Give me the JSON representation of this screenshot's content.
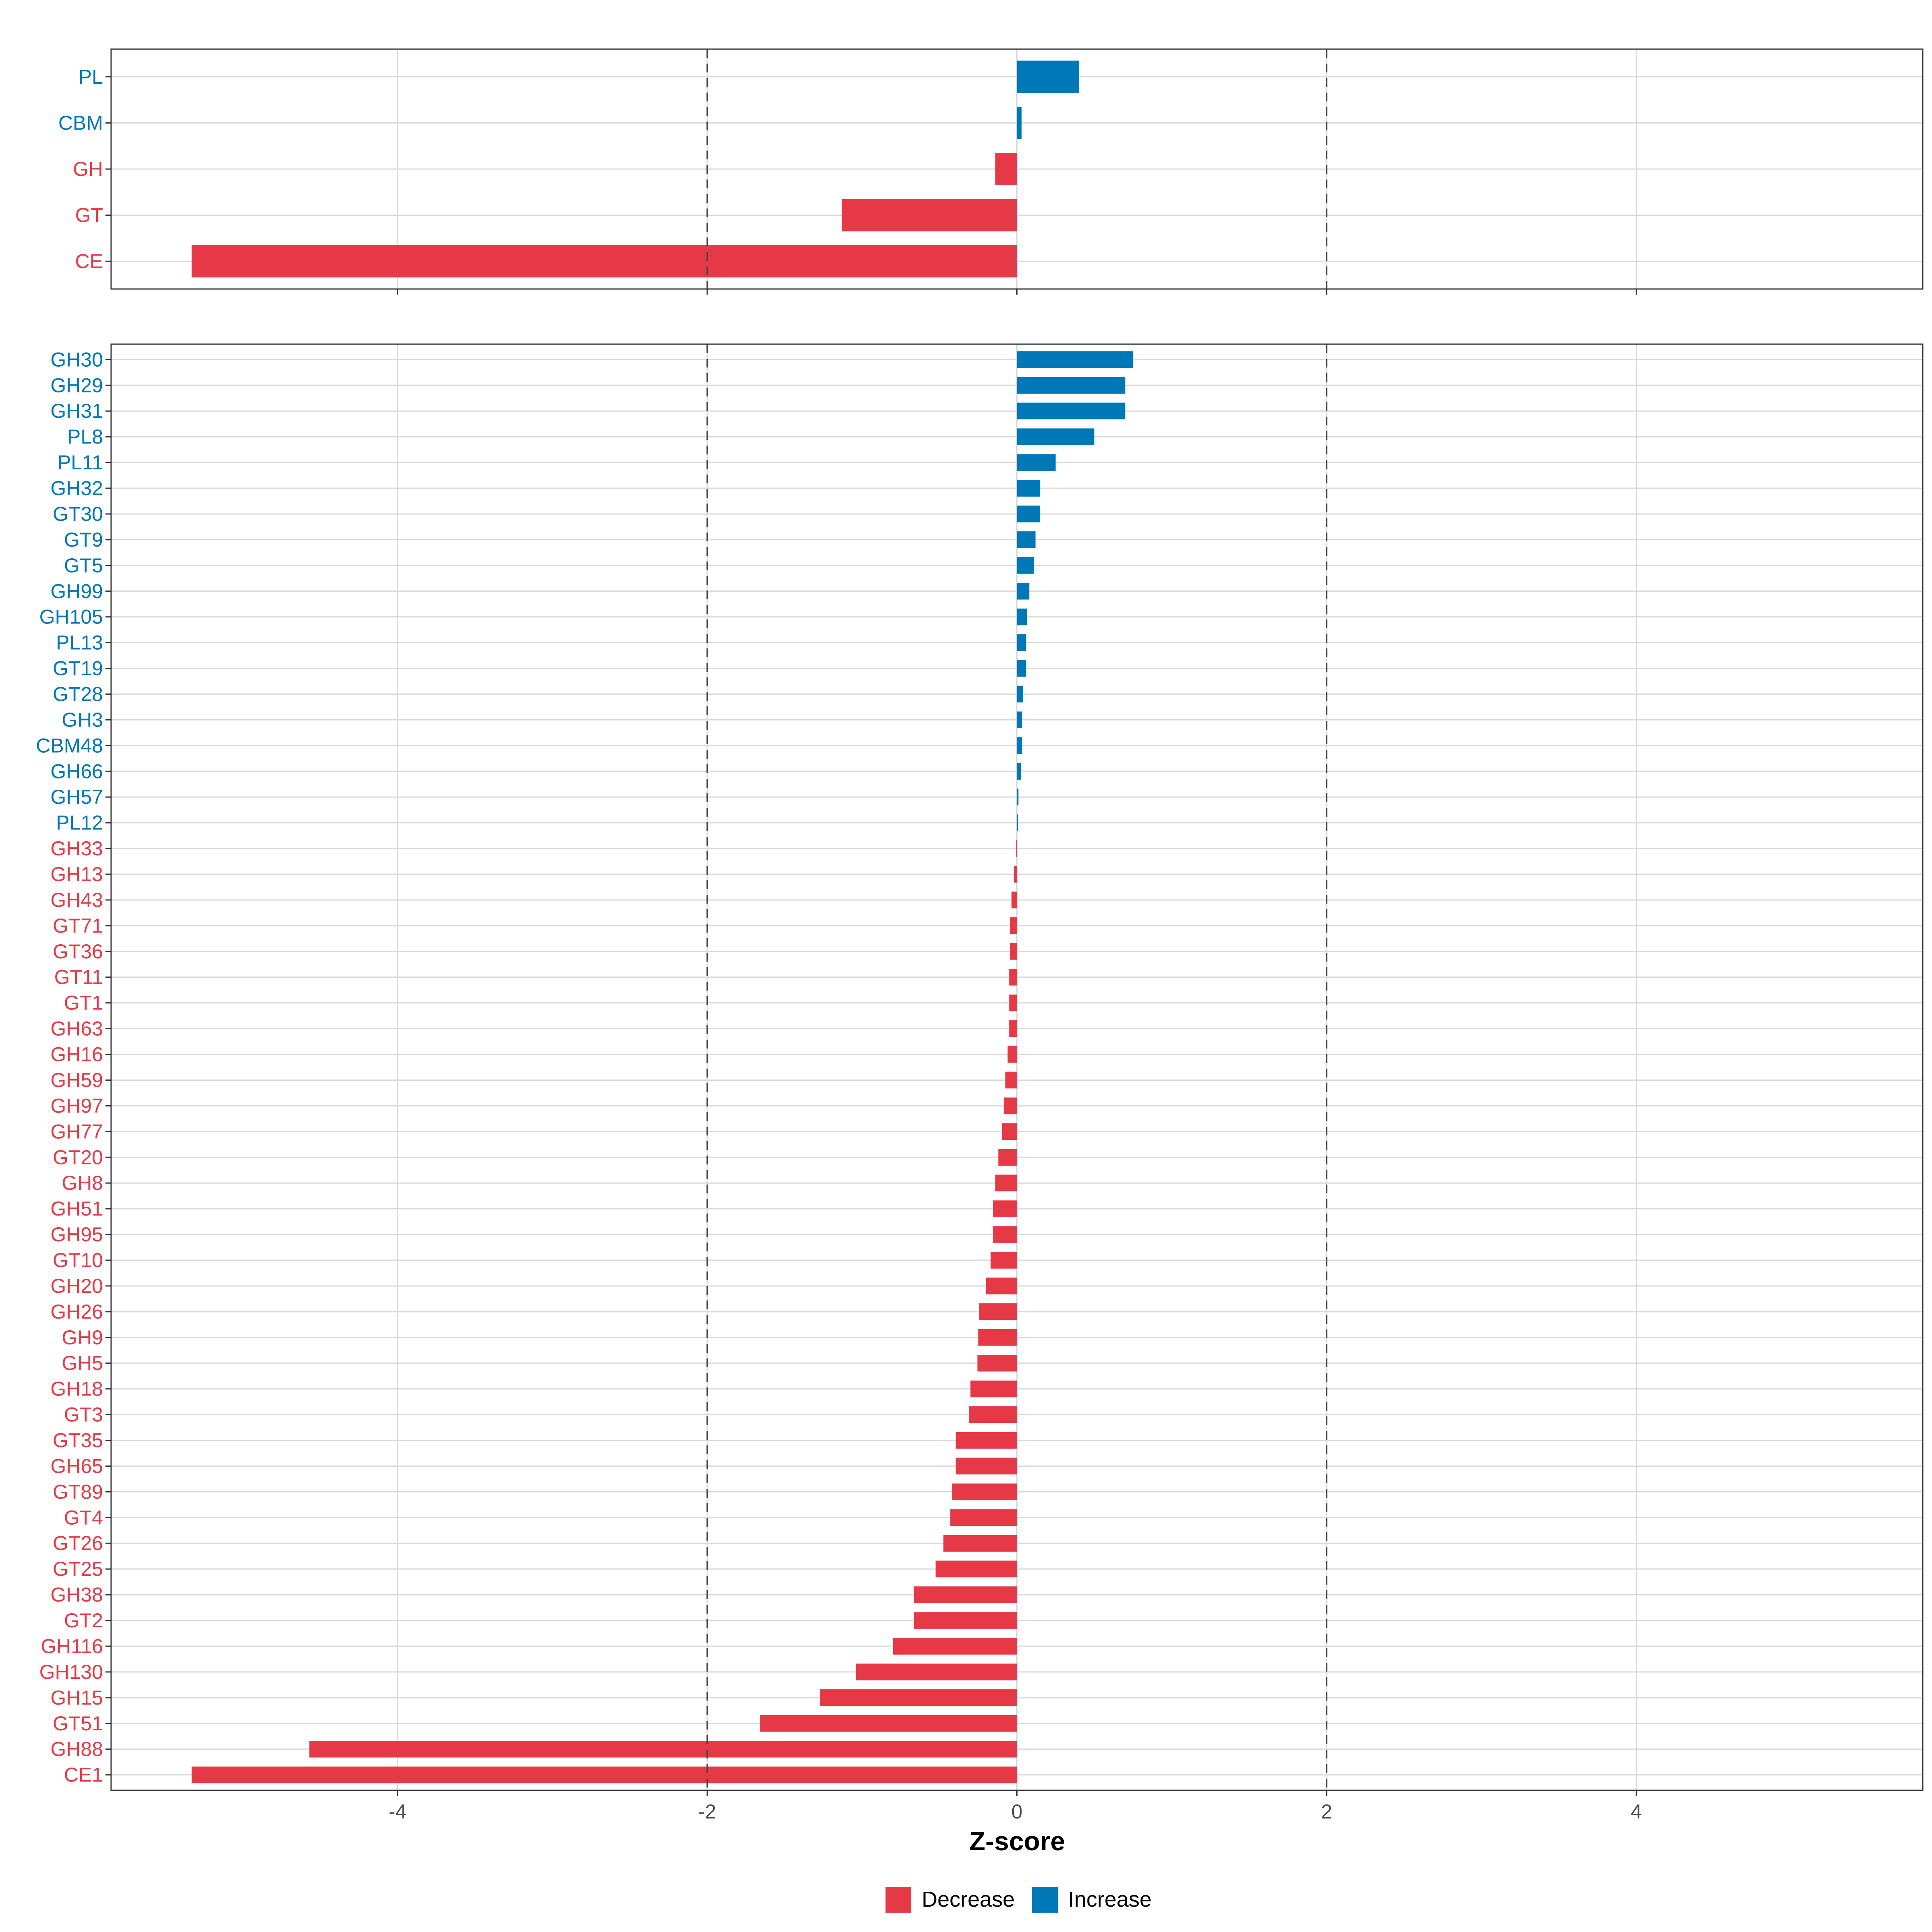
{
  "chart_data": [
    {
      "type": "bar",
      "orientation": "horizontal",
      "panel": "top",
      "categories": [
        "PL",
        "CBM",
        "GH",
        "GT",
        "CE"
      ],
      "values": [
        0.4,
        0.03,
        -0.14,
        -1.13,
        -5.33
      ],
      "xlim": [
        -5.85,
        5.85
      ],
      "reference_lines": [
        -2,
        2
      ],
      "grid": true
    },
    {
      "type": "bar",
      "orientation": "horizontal",
      "panel": "bottom",
      "categories": [
        "GH30",
        "GH29",
        "GH31",
        "PL8",
        "PL11",
        "GH32",
        "GT30",
        "GT9",
        "GT5",
        "GH99",
        "GH105",
        "PL13",
        "GT19",
        "GT28",
        "GH3",
        "CBM48",
        "GH66",
        "GH57",
        "PL12",
        "GH33",
        "GH13",
        "GH43",
        "GT71",
        "GT36",
        "GT11",
        "GT1",
        "GH63",
        "GH16",
        "GH59",
        "GH97",
        "GH77",
        "GT20",
        "GH8",
        "GH51",
        "GH95",
        "GT10",
        "GH20",
        "GH26",
        "GH9",
        "GH5",
        "GH18",
        "GT3",
        "GT35",
        "GH65",
        "GT89",
        "GT4",
        "GT26",
        "GT25",
        "GH38",
        "GT2",
        "GH116",
        "GH130",
        "GH15",
        "GT51",
        "GH88",
        "CE1"
      ],
      "values": [
        0.75,
        0.7,
        0.7,
        0.5,
        0.25,
        0.15,
        0.15,
        0.12,
        0.11,
        0.08,
        0.065,
        0.06,
        0.06,
        0.04,
        0.035,
        0.035,
        0.025,
        0.01,
        0.008,
        -0.005,
        -0.02,
        -0.035,
        -0.045,
        -0.045,
        -0.05,
        -0.05,
        -0.05,
        -0.06,
        -0.075,
        -0.085,
        -0.095,
        -0.12,
        -0.14,
        -0.155,
        -0.155,
        -0.17,
        -0.2,
        -0.245,
        -0.25,
        -0.255,
        -0.3,
        -0.31,
        -0.395,
        -0.395,
        -0.42,
        -0.43,
        -0.475,
        -0.525,
        -0.665,
        -0.665,
        -0.8,
        -1.04,
        -1.27,
        -1.66,
        -4.57,
        -5.33
      ],
      "xlim": [
        -5.85,
        5.85
      ],
      "x_ticks": [
        -4,
        -2,
        0,
        2,
        4
      ],
      "x_tick_labels": [
        "-4",
        "-2",
        "0",
        "2",
        "4"
      ],
      "reference_lines": [
        -2,
        2
      ],
      "xlabel": "Z-score",
      "grid": true
    }
  ],
  "legend": {
    "position": "bottom",
    "items": [
      {
        "label": "Decrease",
        "color": "#e63946"
      },
      {
        "label": "Increase",
        "color": "#0077b6"
      }
    ]
  }
}
